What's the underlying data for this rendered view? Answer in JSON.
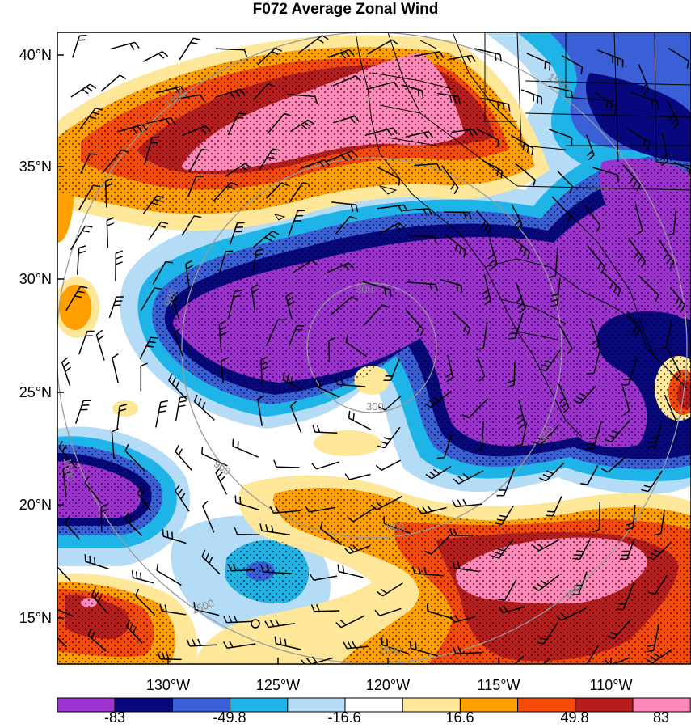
{
  "title": "F072 Average Zonal Wind",
  "lat_labels": [
    "40°N",
    "35°N",
    "30°N",
    "25°N",
    "20°N",
    "15°N"
  ],
  "lon_labels": [
    "130°W",
    "125°W",
    "120°W",
    "115°W",
    "110°W"
  ],
  "colorbar": {
    "colors": [
      "#9c32d0",
      "#08087e",
      "#3a5fd6",
      "#1fb4e8",
      "#b4dcf6",
      "#ffffff",
      "#ffe79a",
      "#ffa000",
      "#f54a0a",
      "#b81c1c",
      "#ff88b8"
    ],
    "labels": [
      "-83",
      "-49.8",
      "-16.6",
      "16.6",
      "49.8",
      "83"
    ]
  },
  "ring_labels": [
    "300",
    "300",
    "900",
    "900",
    "900",
    "900",
    "1500",
    "1500",
    "1500",
    "1500",
    "1500",
    "1500"
  ],
  "map_extent": {
    "lon": [
      -135,
      -106
    ],
    "lat": [
      13,
      41
    ]
  }
}
